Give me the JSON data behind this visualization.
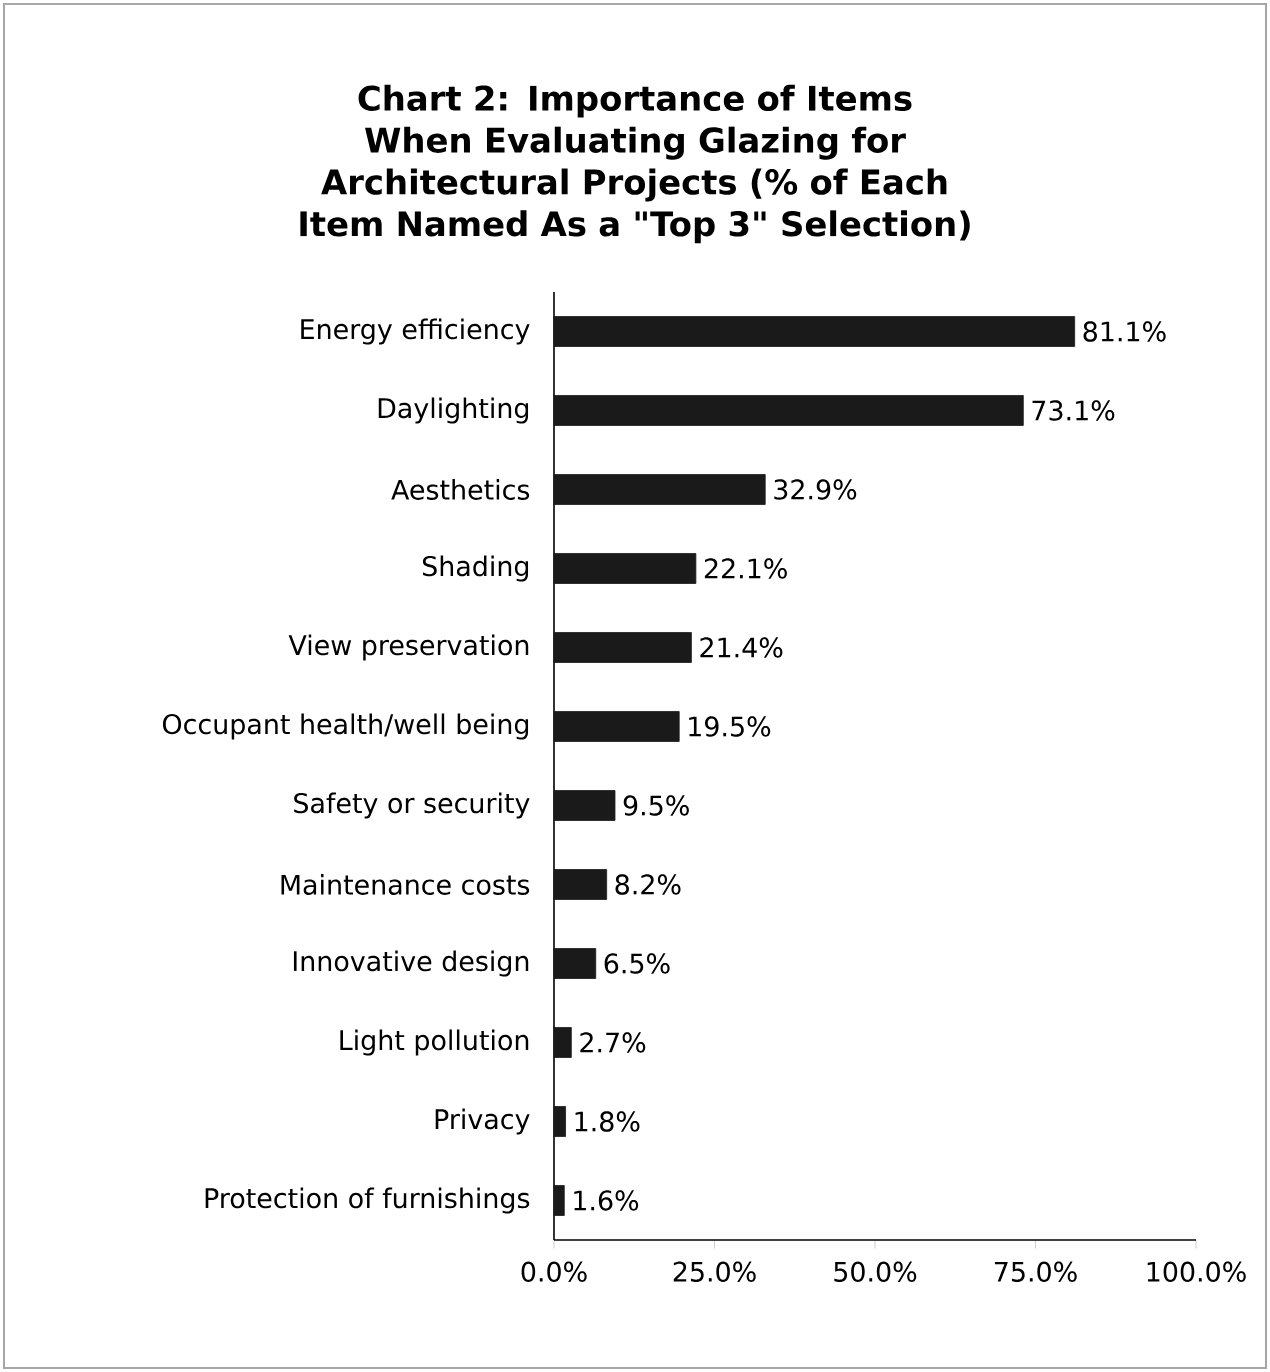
{
  "chart_data": {
    "type": "bar",
    "orientation": "horizontal",
    "title": "Chart 2: Importance of Items When Evaluating Glazing for Architectural Projects (% of Each Item Named As a \"Top 3\" Selection)",
    "categories": [
      "Energy efficiency",
      "Daylighting",
      "Aesthetics",
      "Shading",
      "View preservation",
      "Occupant health/well being",
      "Safety or security",
      "Maintenance costs",
      "Innovative design",
      "Light pollution",
      "Privacy",
      "Protection of furnishings"
    ],
    "values": [
      81.1,
      73.1,
      32.9,
      22.1,
      21.4,
      19.5,
      9.5,
      8.2,
      6.5,
      2.7,
      1.8,
      1.6
    ],
    "value_labels": [
      "81.1%",
      "73.1%",
      "32.9%",
      "22.1%",
      "21.4%",
      "19.5%",
      "9.5%",
      "8.2%",
      "6.5%",
      "2.7%",
      "1.8%",
      "1.6%"
    ],
    "color": "#1a1a1a",
    "xlim": [
      0,
      100
    ],
    "xticks": [
      {
        "value": 0,
        "label": "0.0%"
      },
      {
        "value": 25,
        "label": "25.0%"
      },
      {
        "value": 50,
        "label": "50.0%"
      },
      {
        "value": 75,
        "label": "75.0%"
      },
      {
        "value": 100,
        "label": "100.0%"
      }
    ]
  }
}
